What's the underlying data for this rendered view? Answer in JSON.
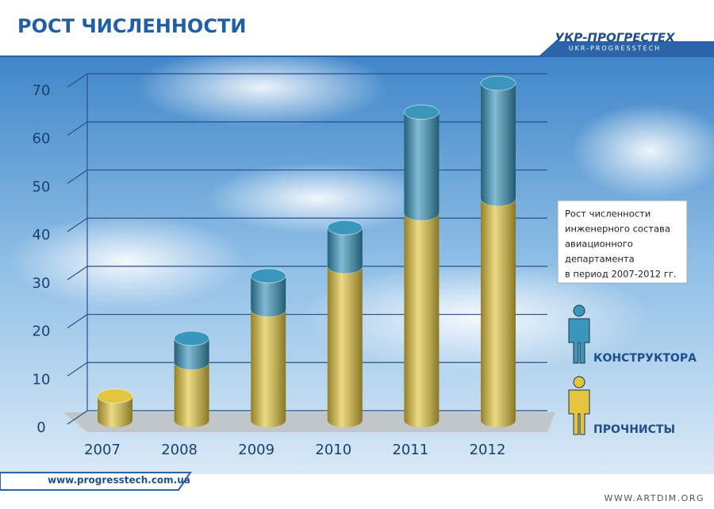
{
  "chart_data": {
    "type": "bar",
    "stacked": true,
    "title": "РОСТ ЧИСЛЕННОСТИ",
    "logo": "УКР-ПРОГРЕСТЕХ",
    "logo_subtitle": "UKR-PROGRESSTECH",
    "annotation": [
      "Рост численности",
      "инженерного состава",
      "авиационного",
      "департамента",
      "в период 2007-2012 гг."
    ],
    "website": "www.progresstech.com.ua",
    "credit": "WWW.ARTDIM.ORG",
    "categories": [
      "2007",
      "2008",
      "2009",
      "2010",
      "2011",
      "2012"
    ],
    "series": [
      {
        "name": "ПРОЧНИСТЫ",
        "color": "#e2c640",
        "values": [
          5,
          12,
          23,
          32,
          43,
          46
        ]
      },
      {
        "name": "КОНСТРУКТОРА",
        "color": "#3a96bb",
        "values": [
          0,
          5,
          7,
          8,
          21,
          24
        ]
      }
    ],
    "ylim": [
      0,
      70
    ],
    "yticks": [
      0,
      10,
      20,
      30,
      40,
      50,
      60,
      70
    ],
    "grid": true
  }
}
